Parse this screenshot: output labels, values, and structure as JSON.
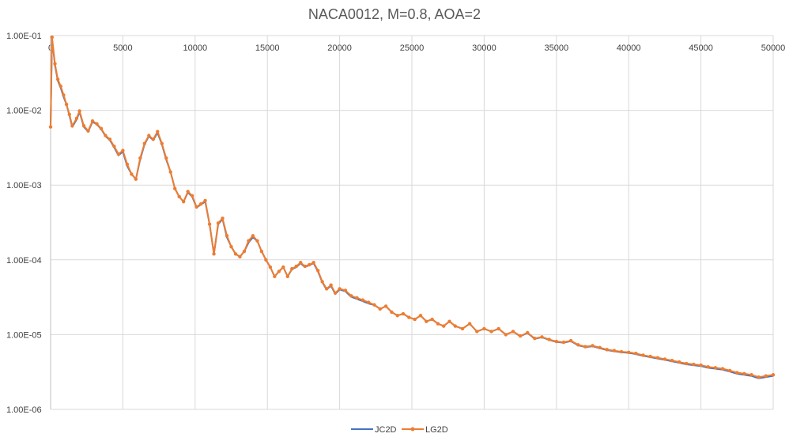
{
  "chart_data": {
    "type": "line",
    "title": "NACA0012, M=0.8, AOA=2",
    "xlabel": "",
    "ylabel": "",
    "x_scale": "linear",
    "y_scale": "log",
    "xlim": [
      0,
      50000
    ],
    "ylim": [
      1e-06,
      0.1
    ],
    "grid": true,
    "legend_position": "bottom",
    "x_ticks": [
      "0",
      "5000",
      "10000",
      "15000",
      "20000",
      "25000",
      "30000",
      "35000",
      "40000",
      "45000",
      "50000"
    ],
    "y_ticks": [
      "1.00E-01",
      "1.00E-02",
      "1.00E-03",
      "1.00E-04",
      "1.00E-05",
      "1.00E-06"
    ],
    "colors": {
      "JC2D": "#4472c4",
      "LG2D": "#ed7d31",
      "grid": "#d9d9d9",
      "axis": "#bfbfbf"
    },
    "series": [
      {
        "name": "JC2D",
        "x": [
          0,
          100,
          300,
          500,
          700,
          900,
          1100,
          1300,
          1500,
          1800,
          2000,
          2300,
          2600,
          2900,
          3200,
          3500,
          3800,
          4100,
          4400,
          4700,
          5000,
          5300,
          5600,
          5900,
          6200,
          6500,
          6800,
          7100,
          7400,
          7700,
          8000,
          8300,
          8600,
          8900,
          9200,
          9500,
          9800,
          10100,
          10400,
          10700,
          11000,
          11300,
          11600,
          11900,
          12200,
          12500,
          12800,
          13100,
          13400,
          13700,
          14000,
          14300,
          14600,
          14900,
          15200,
          15500,
          15800,
          16100,
          16400,
          16700,
          17000,
          17300,
          17600,
          17900,
          18200,
          18500,
          18800,
          19100,
          19400,
          19700,
          20000,
          20400,
          20800,
          21200,
          21600,
          22000,
          22400,
          22800,
          23200,
          23600,
          24000,
          24400,
          24800,
          25200,
          25600,
          26000,
          26400,
          26800,
          27200,
          27600,
          28000,
          28500,
          29000,
          29500,
          30000,
          30500,
          31000,
          31500,
          32000,
          32500,
          33000,
          33500,
          34000,
          34500,
          35000,
          35500,
          36000,
          36500,
          37000,
          37500,
          38000,
          38500,
          39000,
          39500,
          40000,
          40500,
          41000,
          41500,
          42000,
          42500,
          43000,
          43500,
          44000,
          44500,
          45000,
          45500,
          46000,
          46500,
          47000,
          47500,
          48000,
          48500,
          49000,
          49500,
          50000
        ],
        "y": [
          0.006,
          0.09,
          0.04,
          0.025,
          0.02,
          0.015,
          0.012,
          0.0085,
          0.006,
          0.0075,
          0.0095,
          0.006,
          0.0052,
          0.007,
          0.0065,
          0.0056,
          0.0045,
          0.004,
          0.0032,
          0.0025,
          0.0028,
          0.0018,
          0.0014,
          0.0012,
          0.0022,
          0.0035,
          0.0045,
          0.004,
          0.005,
          0.0035,
          0.0022,
          0.0015,
          0.0009,
          0.0007,
          0.0006,
          0.0008,
          0.0007,
          0.0005,
          0.00055,
          0.0006,
          0.0003,
          0.00012,
          0.0003,
          0.00035,
          0.0002,
          0.00015,
          0.00012,
          0.00011,
          0.00013,
          0.00017,
          0.0002,
          0.00018,
          0.00013,
          0.0001,
          8e-05,
          6e-05,
          7e-05,
          8e-05,
          6e-05,
          7.5e-05,
          8e-05,
          9e-05,
          8e-05,
          8.5e-05,
          9e-05,
          7e-05,
          5e-05,
          4e-05,
          4.5e-05,
          3.5e-05,
          4e-05,
          3.8e-05,
          3.2e-05,
          3e-05,
          2.8e-05,
          2.6e-05,
          2.5e-05,
          2.2e-05,
          2.4e-05,
          2e-05,
          1.8e-05,
          1.9e-05,
          1.7e-05,
          1.6e-05,
          1.8e-05,
          1.5e-05,
          1.6e-05,
          1.4e-05,
          1.3e-05,
          1.5e-05,
          1.3e-05,
          1.2e-05,
          1.4e-05,
          1.1e-05,
          1.2e-05,
          1.1e-05,
          1.2e-05,
          1e-05,
          1.1e-05,
          9.5e-06,
          1.05e-05,
          8.8e-06,
          9.2e-06,
          8.5e-06,
          8e-06,
          7.8e-06,
          8.2e-06,
          7.2e-06,
          6.8e-06,
          7e-06,
          6.6e-06,
          6.2e-06,
          6e-06,
          5.8e-06,
          5.7e-06,
          5.5e-06,
          5.2e-06,
          5e-06,
          4.8e-06,
          4.6e-06,
          4.4e-06,
          4.2e-06,
          4e-06,
          3.9e-06,
          3.8e-06,
          3.6e-06,
          3.5e-06,
          3.4e-06,
          3.2e-06,
          3e-06,
          2.9e-06,
          2.8e-06,
          2.6e-06,
          2.7e-06,
          2.8e-06
        ]
      },
      {
        "name": "LG2D",
        "x": [
          0,
          100,
          300,
          500,
          700,
          900,
          1100,
          1300,
          1500,
          1800,
          2000,
          2300,
          2600,
          2900,
          3200,
          3500,
          3800,
          4100,
          4400,
          4700,
          5000,
          5300,
          5600,
          5900,
          6200,
          6500,
          6800,
          7100,
          7400,
          7700,
          8000,
          8300,
          8600,
          8900,
          9200,
          9500,
          9800,
          10100,
          10400,
          10700,
          11000,
          11300,
          11600,
          11900,
          12200,
          12500,
          12800,
          13100,
          13400,
          13700,
          14000,
          14300,
          14600,
          14900,
          15200,
          15500,
          15800,
          16100,
          16400,
          16700,
          17000,
          17300,
          17600,
          17900,
          18200,
          18500,
          18800,
          19100,
          19400,
          19700,
          20000,
          20400,
          20800,
          21200,
          21600,
          22000,
          22400,
          22800,
          23200,
          23600,
          24000,
          24400,
          24800,
          25200,
          25600,
          26000,
          26400,
          26800,
          27200,
          27600,
          28000,
          28500,
          29000,
          29500,
          30000,
          30500,
          31000,
          31500,
          32000,
          32500,
          33000,
          33500,
          34000,
          34500,
          35000,
          35500,
          36000,
          36500,
          37000,
          37500,
          38000,
          38500,
          39000,
          39500,
          40000,
          40500,
          41000,
          41500,
          42000,
          42500,
          43000,
          43500,
          44000,
          44500,
          45000,
          45500,
          46000,
          46500,
          47000,
          47500,
          48000,
          48500,
          49000,
          49500,
          50000
        ],
        "y": [
          0.006,
          0.095,
          0.042,
          0.026,
          0.021,
          0.016,
          0.012,
          0.0088,
          0.0062,
          0.0078,
          0.0098,
          0.0062,
          0.0053,
          0.0072,
          0.0066,
          0.0057,
          0.0046,
          0.0041,
          0.0033,
          0.0026,
          0.0029,
          0.0019,
          0.0014,
          0.0012,
          0.0023,
          0.0036,
          0.0046,
          0.0041,
          0.0052,
          0.0036,
          0.0023,
          0.0015,
          0.0009,
          0.0007,
          0.0006,
          0.00082,
          0.00072,
          0.00051,
          0.00056,
          0.00062,
          0.0003,
          0.00012,
          0.00031,
          0.00036,
          0.00021,
          0.00015,
          0.00012,
          0.00011,
          0.00013,
          0.00018,
          0.00021,
          0.00018,
          0.00013,
          0.0001,
          8e-05,
          6e-05,
          7e-05,
          8e-05,
          6e-05,
          7.6e-05,
          8.2e-05,
          9.2e-05,
          8.2e-05,
          8.6e-05,
          9.2e-05,
          7.2e-05,
          5.1e-05,
          4.1e-05,
          4.6e-05,
          3.6e-05,
          4.1e-05,
          3.9e-05,
          3.3e-05,
          3.1e-05,
          2.9e-05,
          2.7e-05,
          2.5e-05,
          2.2e-05,
          2.4e-05,
          2e-05,
          1.8e-05,
          1.9e-05,
          1.7e-05,
          1.6e-05,
          1.8e-05,
          1.5e-05,
          1.6e-05,
          1.4e-05,
          1.3e-05,
          1.5e-05,
          1.3e-05,
          1.2e-05,
          1.4e-05,
          1.1e-05,
          1.2e-05,
          1.1e-05,
          1.2e-05,
          1e-05,
          1.1e-05,
          9.6e-06,
          1.06e-05,
          8.9e-06,
          9.3e-06,
          8.6e-06,
          8.1e-06,
          7.9e-06,
          8.3e-06,
          7.3e-06,
          6.9e-06,
          7.1e-06,
          6.7e-06,
          6.3e-06,
          6.1e-06,
          5.9e-06,
          5.8e-06,
          5.6e-06,
          5.3e-06,
          5.1e-06,
          4.9e-06,
          4.7e-06,
          4.5e-06,
          4.3e-06,
          4.1e-06,
          4e-06,
          3.9e-06,
          3.7e-06,
          3.6e-06,
          3.5e-06,
          3.3e-06,
          3.1e-06,
          3e-06,
          2.9e-06,
          2.7e-06,
          2.8e-06,
          2.9e-06
        ]
      }
    ]
  }
}
